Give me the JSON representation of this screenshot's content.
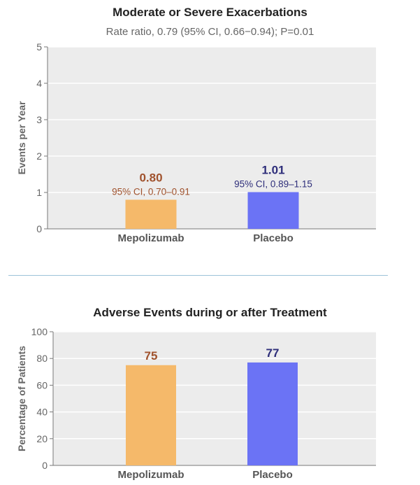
{
  "chart_data": [
    {
      "type": "bar",
      "title": "Moderate or Severe Exacerbations",
      "subtitle": "Rate ratio, 0.79 (95% CI, 0.66−0.94); P=0.01",
      "ylabel": "Events per Year",
      "ylim": [
        0,
        5
      ],
      "yticks": [
        0,
        1,
        2,
        3,
        4,
        5
      ],
      "grid": true,
      "categories": [
        "Mepolizumab",
        "Placebo"
      ],
      "values": [
        0.8,
        1.01
      ],
      "value_labels": [
        "0.80",
        "1.01"
      ],
      "ci_labels": [
        "95% CI, 0.70–0.91",
        "95% CI, 0.89–1.15"
      ],
      "bar_colors": [
        "#f5b96a",
        "#6b73f5"
      ],
      "label_colors": [
        "#a0522d",
        "#2e2e7a"
      ]
    },
    {
      "type": "bar",
      "title": "Adverse Events during or after Treatment",
      "ylabel": "Percentage of Patients",
      "ylim": [
        0,
        100
      ],
      "yticks": [
        0,
        20,
        40,
        60,
        80,
        100
      ],
      "grid": true,
      "categories": [
        "Mepolizumab",
        "Placebo"
      ],
      "values": [
        75,
        77
      ],
      "value_labels": [
        "75",
        "77"
      ],
      "bar_colors": [
        "#f5b96a",
        "#6b73f5"
      ],
      "label_colors": [
        "#a0522d",
        "#2e2e7a"
      ]
    }
  ]
}
